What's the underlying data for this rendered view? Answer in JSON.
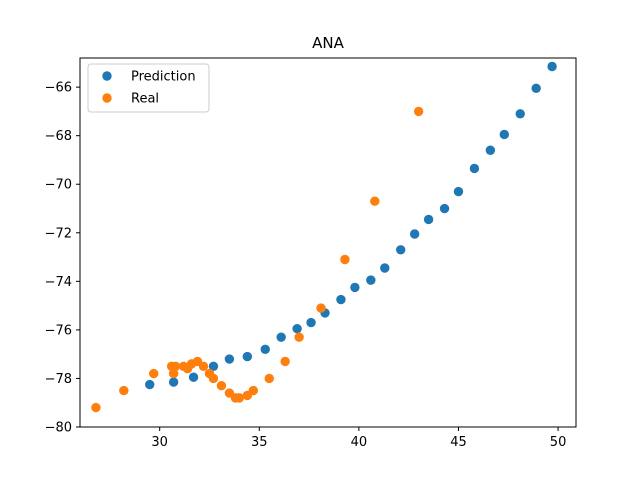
{
  "chart_data": {
    "type": "scatter",
    "title": "ANA",
    "xlabel": "",
    "ylabel": "",
    "xlim": [
      26.0,
      50.9
    ],
    "ylim": [
      -80,
      -64.8
    ],
    "xticks": [
      30,
      35,
      40,
      45,
      50
    ],
    "yticks": [
      -80,
      -78,
      -76,
      -74,
      -72,
      -70,
      -68,
      -66
    ],
    "grid": false,
    "legend_position": "top-left",
    "series": [
      {
        "name": "Prediction",
        "color": "#1f77b4",
        "points": [
          [
            29.5,
            -78.25
          ],
          [
            30.7,
            -78.15
          ],
          [
            31.7,
            -77.95
          ],
          [
            32.7,
            -77.5
          ],
          [
            33.5,
            -77.2
          ],
          [
            34.4,
            -77.1
          ],
          [
            35.3,
            -76.8
          ],
          [
            36.1,
            -76.3
          ],
          [
            36.9,
            -75.95
          ],
          [
            37.6,
            -75.7
          ],
          [
            38.3,
            -75.3
          ],
          [
            39.1,
            -74.75
          ],
          [
            39.8,
            -74.25
          ],
          [
            40.6,
            -73.95
          ],
          [
            41.3,
            -73.45
          ],
          [
            42.1,
            -72.7
          ],
          [
            42.8,
            -72.05
          ],
          [
            43.5,
            -71.45
          ],
          [
            44.3,
            -71.0
          ],
          [
            45.0,
            -70.3
          ],
          [
            45.8,
            -69.35
          ],
          [
            46.6,
            -68.6
          ],
          [
            47.3,
            -67.95
          ],
          [
            48.1,
            -67.1
          ],
          [
            48.9,
            -66.05
          ],
          [
            49.7,
            -65.15
          ]
        ]
      },
      {
        "name": "Real",
        "color": "#ff7f0e",
        "points": [
          [
            26.8,
            -79.2
          ],
          [
            28.2,
            -78.5
          ],
          [
            29.7,
            -77.8
          ],
          [
            30.6,
            -77.5
          ],
          [
            30.7,
            -77.8
          ],
          [
            30.8,
            -77.5
          ],
          [
            31.2,
            -77.5
          ],
          [
            31.4,
            -77.6
          ],
          [
            31.6,
            -77.4
          ],
          [
            31.9,
            -77.3
          ],
          [
            32.2,
            -77.5
          ],
          [
            32.5,
            -77.8
          ],
          [
            32.7,
            -78.0
          ],
          [
            33.1,
            -78.3
          ],
          [
            33.5,
            -78.6
          ],
          [
            33.8,
            -78.8
          ],
          [
            34.0,
            -78.8
          ],
          [
            34.4,
            -78.7
          ],
          [
            34.7,
            -78.5
          ],
          [
            35.5,
            -78.0
          ],
          [
            36.3,
            -77.3
          ],
          [
            37.0,
            -76.3
          ],
          [
            38.1,
            -75.1
          ],
          [
            39.3,
            -73.1
          ],
          [
            40.8,
            -70.7
          ],
          [
            43.0,
            -67.0
          ]
        ]
      }
    ]
  }
}
